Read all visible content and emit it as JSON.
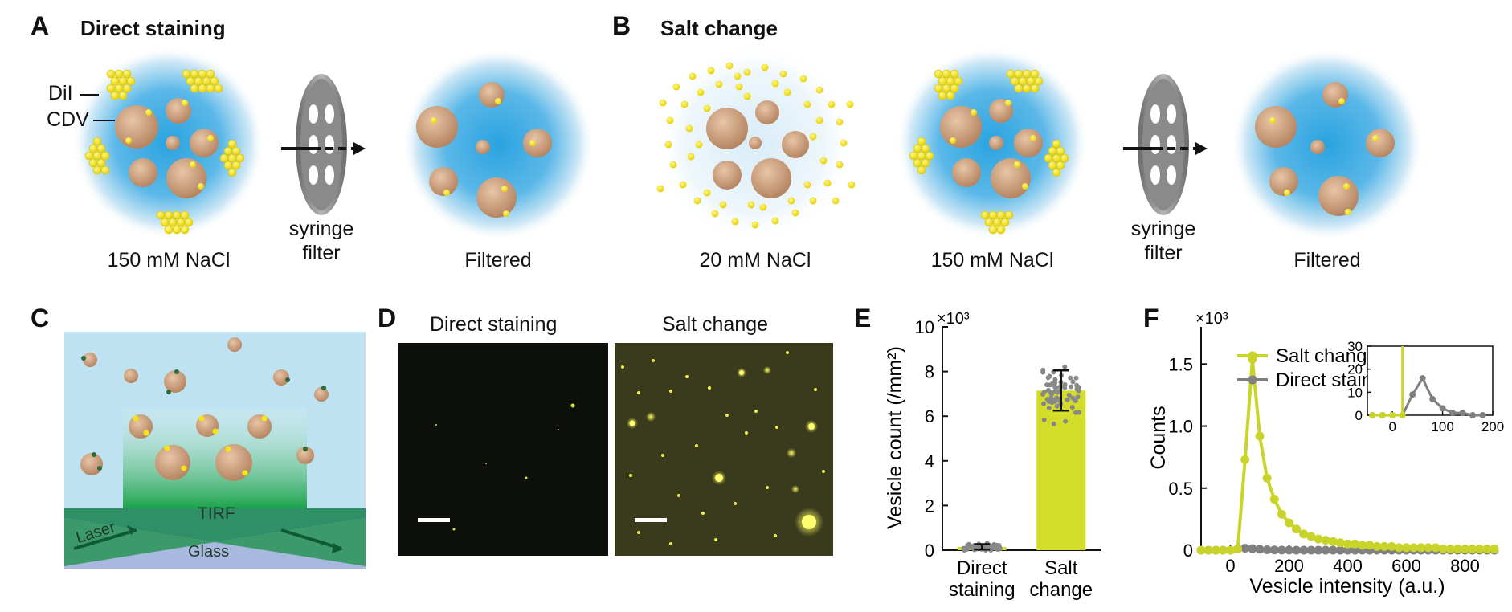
{
  "panels": {
    "A": {
      "letter": "A",
      "title": "Direct staining",
      "label_dii": "DiI",
      "label_cdv": "CDV",
      "cap1": "150 mM NaCl",
      "filter_l1": "syringe",
      "filter_l2": "filter",
      "cap2": "Filtered"
    },
    "B": {
      "letter": "B",
      "title": "Salt change",
      "cap1": "20 mM NaCl",
      "cap2": "150 mM NaCl",
      "filter_l1": "syringe",
      "filter_l2": "filter",
      "cap3": "Filtered"
    },
    "C": {
      "letter": "C",
      "tirf": "TIRF",
      "laser": "Laser",
      "glass": "Glass"
    },
    "D": {
      "letter": "D",
      "left_title": "Direct staining",
      "right_title": "Salt change"
    },
    "E": {
      "letter": "E"
    },
    "F": {
      "letter": "F"
    }
  },
  "colors": {
    "bar_yellow": "#d4de2a",
    "dot_gray": "#888888",
    "water": "#2aa3e0",
    "vesicle": "#c99a76",
    "dye": "#f5e416"
  },
  "chart_data": [
    {
      "panel": "E",
      "type": "bar",
      "categories": [
        [
          "Direct",
          "staining"
        ],
        [
          "Salt",
          "change"
        ]
      ],
      "values": [
        0.15,
        7.15
      ],
      "errors": [
        0.12,
        0.9
      ],
      "ylabel": "Vesicle count (/mm²)",
      "exponent": "×10³",
      "ylim": [
        0,
        10
      ],
      "yticks": [
        0,
        2,
        4,
        6,
        8,
        10
      ],
      "scatter_points": "individual measurements overlaid on each bar"
    },
    {
      "panel": "F",
      "type": "line",
      "xlabel": "Vesicle intensity (a.u.)",
      "ylabel": "Counts",
      "exponent": "×10³",
      "xlim": [
        -100,
        900
      ],
      "ylim": [
        0,
        1.8
      ],
      "xticks": [
        0,
        200,
        400,
        600,
        800
      ],
      "yticks": [
        0,
        0.5,
        1.0,
        1.5
      ],
      "ytick_labels": [
        "0",
        "0.5",
        "1.0",
        "1.5"
      ],
      "legend": "top-right",
      "series": [
        {
          "name": "Salt change",
          "color": "#c8d42a",
          "x": [
            -100,
            -75,
            -50,
            -25,
            0,
            25,
            50,
            75,
            100,
            125,
            150,
            175,
            200,
            225,
            250,
            275,
            300,
            325,
            350,
            375,
            400,
            425,
            450,
            475,
            500,
            525,
            550,
            575,
            600,
            625,
            650,
            675,
            700,
            725,
            750,
            775,
            800,
            825,
            850,
            875,
            900
          ],
          "y": [
            0,
            0,
            0,
            0,
            0,
            0.01,
            0.73,
            1.54,
            0.92,
            0.58,
            0.41,
            0.29,
            0.22,
            0.17,
            0.13,
            0.11,
            0.09,
            0.08,
            0.07,
            0.06,
            0.05,
            0.05,
            0.04,
            0.04,
            0.03,
            0.03,
            0.03,
            0.02,
            0.02,
            0.02,
            0.02,
            0.02,
            0.02,
            0.01,
            0.01,
            0.01,
            0.01,
            0.01,
            0.01,
            0.01,
            0.01
          ]
        },
        {
          "name": "Direct staining",
          "color": "#808080",
          "x": [
            -100,
            -75,
            -50,
            -25,
            0,
            25,
            50,
            75,
            100,
            125,
            150,
            175,
            200,
            225,
            250,
            275,
            300,
            325,
            350,
            375,
            400,
            425,
            450,
            475,
            500,
            525,
            550,
            575,
            600,
            625,
            650,
            675,
            700,
            725,
            750,
            775,
            800,
            825,
            850,
            875,
            900
          ],
          "y": [
            0,
            0,
            0,
            0,
            0,
            0.01,
            0.016,
            0.012,
            0.007,
            0.003,
            0.002,
            0.001,
            0.001,
            0,
            0,
            0,
            0,
            0,
            0,
            0,
            0,
            0,
            0,
            0,
            0,
            0,
            0,
            0,
            0,
            0,
            0,
            0,
            0,
            0,
            0,
            0,
            0,
            0,
            0,
            0,
            0
          ]
        }
      ],
      "inset": {
        "xlim": [
          -50,
          200
        ],
        "ylim": [
          0,
          30
        ],
        "xticks": [
          0,
          100,
          200
        ],
        "yticks": [
          0,
          10,
          20,
          30
        ],
        "series": [
          {
            "name": "Salt change",
            "x": [
              -40,
              -20,
              0,
              20,
              20
            ],
            "y": [
              0,
              0,
              0,
              0,
              30
            ]
          },
          {
            "name": "Direct staining",
            "x": [
              -40,
              -20,
              0,
              20,
              40,
              60,
              80,
              100,
              120,
              140,
              160,
              180
            ],
            "y": [
              0,
              0,
              0,
              0,
              9,
              16,
              7,
              3,
              1,
              1,
              0,
              0
            ]
          }
        ]
      }
    }
  ]
}
